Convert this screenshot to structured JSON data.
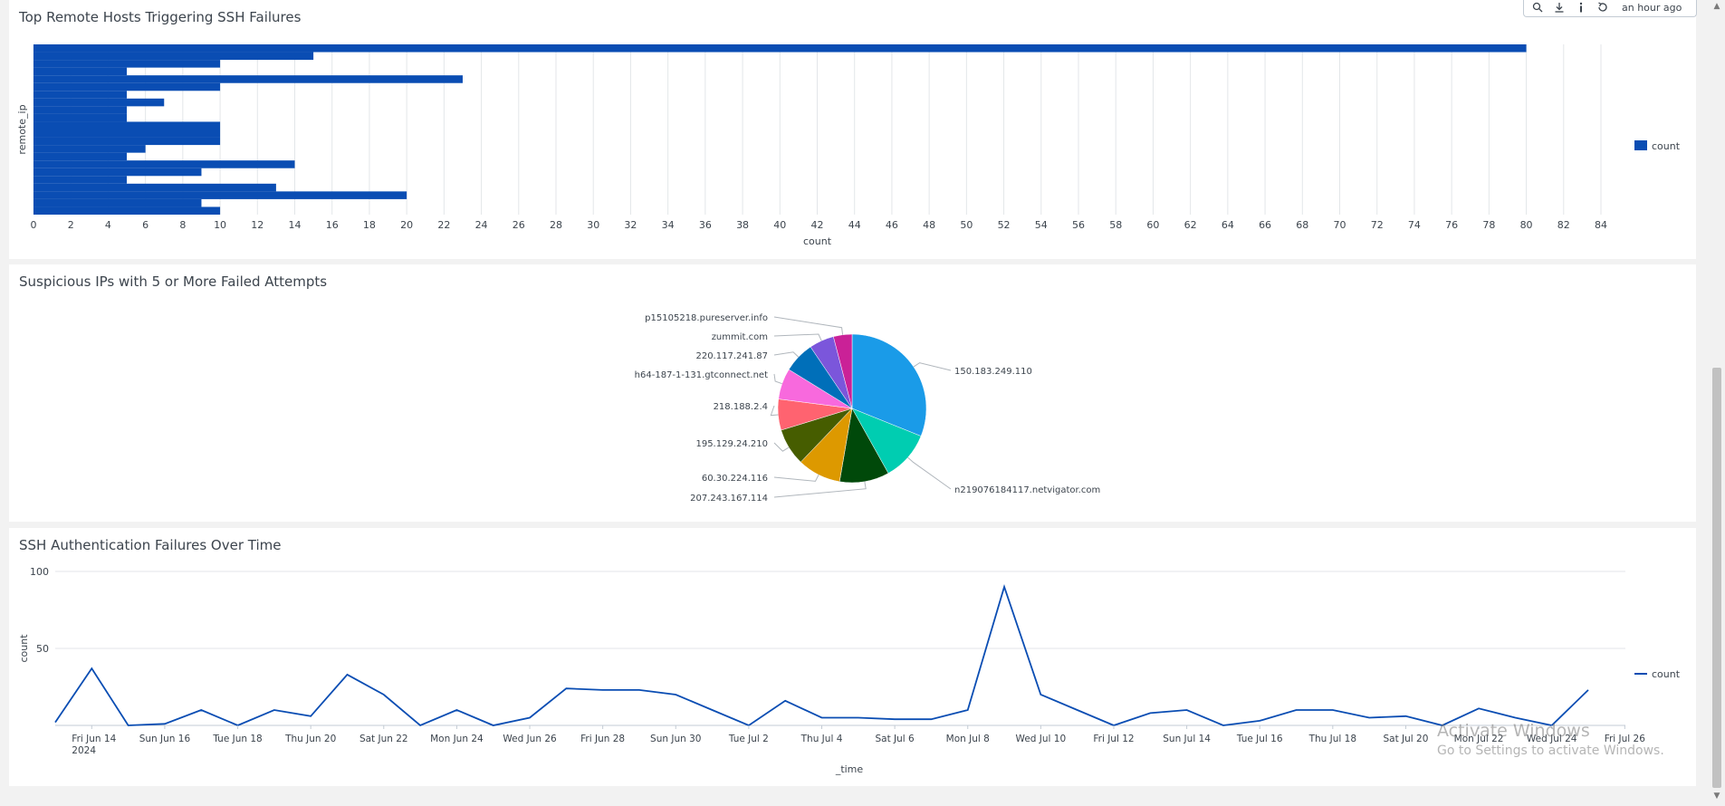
{
  "toolbar": {
    "updated": "an hour ago",
    "icons": [
      "search-icon",
      "download-icon",
      "info-icon",
      "refresh-icon"
    ]
  },
  "panels": {
    "bar": {
      "title": "Top Remote Hosts Triggering SSH Failures"
    },
    "pie": {
      "title": "Suspicious IPs with 5 or More Failed Attempts"
    },
    "line": {
      "title": "SSH Authentication Failures Over Time"
    }
  },
  "watermark": {
    "line1": "Activate Windows",
    "line2": "Go to Settings to activate Windows."
  },
  "colors": {
    "accent": "#0a4db3"
  },
  "chart_data": [
    {
      "type": "bar",
      "orientation": "horizontal",
      "title": "Top Remote Hosts Triggering SSH Failures",
      "xlabel": "count",
      "ylabel": "remote_ip",
      "xlim": [
        0,
        84
      ],
      "xticks": [
        0,
        2,
        4,
        6,
        8,
        10,
        12,
        14,
        16,
        18,
        20,
        22,
        24,
        26,
        28,
        30,
        32,
        34,
        36,
        38,
        40,
        42,
        44,
        46,
        48,
        50,
        52,
        54,
        56,
        58,
        60,
        62,
        64,
        66,
        68,
        70,
        72,
        74,
        76,
        78,
        80,
        82,
        84
      ],
      "legend": "right",
      "series": [
        {
          "name": "count",
          "values": [
            80,
            15,
            10,
            5,
            23,
            10,
            5,
            7,
            5,
            5,
            10,
            10,
            10,
            6,
            5,
            14,
            9,
            5,
            13,
            20,
            9,
            10
          ]
        }
      ]
    },
    {
      "type": "pie",
      "title": "Suspicious IPs with 5 or More Failed Attempts",
      "labels": [
        "150.183.249.110",
        "n219076184117.netvigator.com",
        "207.243.167.114",
        "60.30.224.116",
        "195.129.24.210",
        "218.188.2.4",
        "h64-187-1-131.gtconnect.net",
        "220.117.241.87",
        "zummit.com",
        "p15105218.pureserver.info"
      ],
      "values": [
        23,
        8,
        8,
        7,
        6,
        5,
        5,
        5,
        4,
        3
      ],
      "colors": [
        "#1a9be8",
        "#00cdb1",
        "#00490a",
        "#dd9900",
        "#465d00",
        "#ff6370",
        "#f869dd",
        "#006fb9",
        "#7b56db",
        "#ca2197"
      ]
    },
    {
      "type": "line",
      "title": "SSH Authentication Failures Over Time",
      "xlabel": "_time",
      "ylabel": "count",
      "ylim": [
        0,
        100
      ],
      "yticks": [
        50,
        100
      ],
      "legend": "right",
      "xtick_labels": [
        "Fri Jun 14\n2024",
        "Sun Jun 16",
        "Tue Jun 18",
        "Thu Jun 20",
        "Sat Jun 22",
        "Mon Jun 24",
        "Wed Jun 26",
        "Fri Jun 28",
        "Sun Jun 30",
        "Tue Jul 2",
        "Thu Jul 4",
        "Sat Jul 6",
        "Mon Jul 8",
        "Wed Jul 10",
        "Fri Jul 12",
        "Sun Jul 14",
        "Tue Jul 16",
        "Thu Jul 18",
        "Sat Jul 20",
        "Mon Jul 22",
        "Wed Jul 24",
        "Fri Jul 26"
      ],
      "series": [
        {
          "name": "count",
          "x": [
            "Jun 13",
            "Jun 14",
            "Jun 15",
            "Jun 16",
            "Jun 17",
            "Jun 18",
            "Jun 19",
            "Jun 20",
            "Jun 21",
            "Jun 22",
            "Jun 23",
            "Jun 24",
            "Jun 25",
            "Jun 26",
            "Jun 27",
            "Jun 28",
            "Jun 29",
            "Jun 30",
            "Jul 1",
            "Jul 2",
            "Jul 3",
            "Jul 4",
            "Jul 5",
            "Jul 6",
            "Jul 7",
            "Jul 8",
            "Jul 9",
            "Jul 10",
            "Jul 11",
            "Jul 12",
            "Jul 13",
            "Jul 14",
            "Jul 15",
            "Jul 16",
            "Jul 17",
            "Jul 18",
            "Jul 19",
            "Jul 20",
            "Jul 21",
            "Jul 22",
            "Jul 23",
            "Jul 24",
            "Jul 25"
          ],
          "values": [
            2,
            37,
            0,
            1,
            10,
            0,
            10,
            6,
            33,
            20,
            0,
            10,
            0,
            5,
            24,
            23,
            23,
            20,
            10,
            0,
            16,
            5,
            5,
            4,
            4,
            10,
            90,
            20,
            10,
            0,
            8,
            10,
            0,
            3,
            10,
            10,
            5,
            6,
            0,
            11,
            5,
            0,
            23
          ]
        }
      ]
    }
  ]
}
